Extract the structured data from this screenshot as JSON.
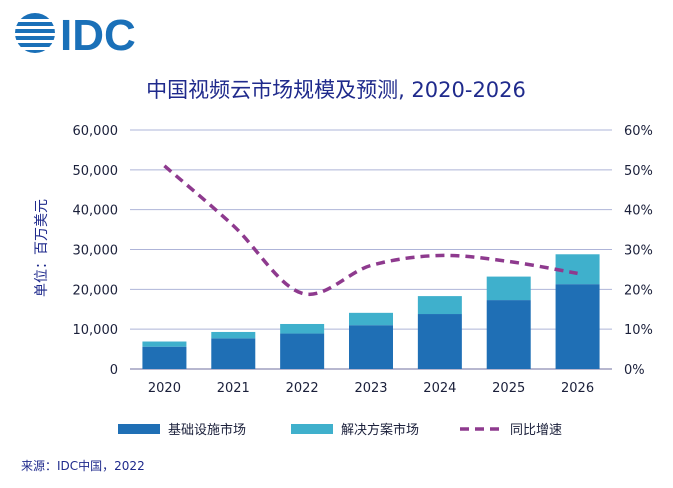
{
  "logo": {
    "text": "IDC"
  },
  "chart_data": {
    "type": "bar",
    "title": "中国视频云市场规模及预测, 2020-2026",
    "ylabel": "单位：百万美元",
    "categories": [
      "2020",
      "2021",
      "2022",
      "2023",
      "2024",
      "2025",
      "2026"
    ],
    "series": [
      {
        "name": "基础设施市场",
        "kind": "bar-stacked",
        "axis": "left",
        "color": "#1f6fb5",
        "values": [
          5600,
          7700,
          8900,
          11000,
          13800,
          17300,
          21300
        ]
      },
      {
        "name": "解决方案市场",
        "kind": "bar-stacked",
        "axis": "left",
        "color": "#3fb0cc",
        "values": [
          1300,
          1600,
          2400,
          3100,
          4500,
          5900,
          7500
        ]
      },
      {
        "name": "同比增速",
        "kind": "line-dashed",
        "axis": "right",
        "color": "#8e3a8e",
        "values": [
          0.51,
          0.36,
          0.19,
          0.26,
          0.285,
          0.27,
          0.24
        ]
      }
    ],
    "ylim": [
      0,
      60000
    ],
    "yticks": [
      "0",
      "10,000",
      "20,000",
      "30,000",
      "40,000",
      "50,000",
      "60,000"
    ],
    "y2lim": [
      0,
      0.6
    ],
    "y2ticks": [
      "0%",
      "10%",
      "20%",
      "30%",
      "40%",
      "50%",
      "60%"
    ],
    "grid": true,
    "legend_position": "bottom"
  },
  "source": "来源：IDC中国，2022"
}
